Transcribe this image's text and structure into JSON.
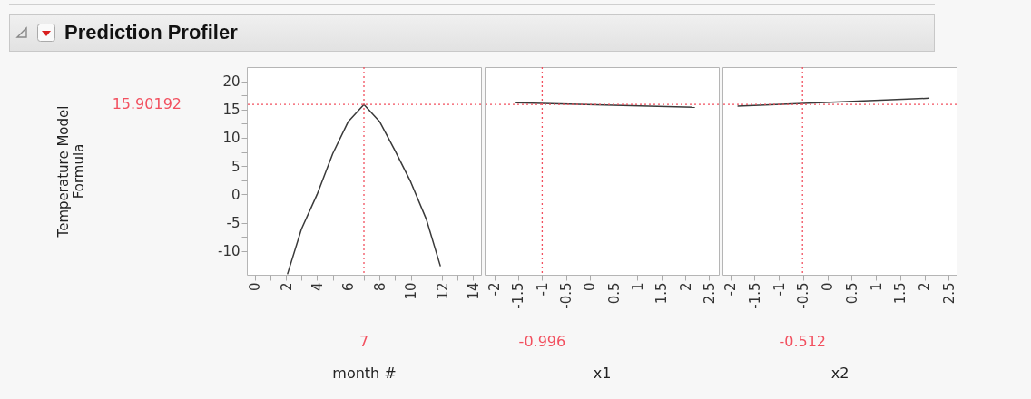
{
  "chart_data": [
    {
      "type": "line",
      "title": "Prediction Profiler",
      "ylabel": "Temperature Model Formula",
      "xlabel": "month #",
      "xlim": [
        -0.5,
        14.5
      ],
      "ylim": [
        -14.2,
        22.5
      ],
      "xticks": [
        0,
        {
          "value": 1,
          "label": null
        },
        2,
        {
          "value": 3,
          "label": null
        },
        4,
        {
          "value": 5,
          "label": null
        },
        6,
        {
          "value": 7,
          "label": null
        },
        8,
        {
          "value": 9,
          "label": null
        },
        10,
        {
          "value": 11,
          "label": null
        },
        12,
        {
          "value": 13,
          "label": null
        },
        14
      ],
      "yticks": [
        -10,
        {
          "value": -7.5,
          "label": null
        },
        -5,
        {
          "value": -2.5,
          "label": null
        },
        0,
        {
          "value": 2.5,
          "label": null
        },
        5,
        {
          "value": 7.5,
          "label": null
        },
        10,
        {
          "value": 12.5,
          "label": null
        },
        15,
        {
          "value": 17.5,
          "label": null
        },
        20
      ],
      "series": [
        {
          "color": "#3a3a3a",
          "x": [
            2.1,
            3,
            4,
            5,
            6,
            7,
            8,
            9,
            10,
            11,
            11.9
          ],
          "values": [
            -14.1,
            -6.1,
            0,
            7.2,
            12.9,
            15.9,
            12.9,
            7.7,
            2.2,
            -4.4,
            -12.7
          ]
        }
      ],
      "ref_lines": [
        {
          "axis": "x",
          "value": 7,
          "label": "7",
          "color": "#f2505f",
          "line_style": "dotted"
        },
        {
          "axis": "y",
          "value": 15.90192,
          "label": "15.90192",
          "color": "#f2505f",
          "line_style": "dotted"
        }
      ],
      "grid": false
    },
    {
      "type": "line",
      "xlabel": "x1",
      "xlim": [
        -2.2,
        2.7
      ],
      "ylim": [
        -14.2,
        22.5
      ],
      "tick_labels": "x",
      "xticks": [
        -2,
        -1.5,
        -1,
        -0.5,
        0,
        0.5,
        1,
        1.5,
        2,
        2.5
      ],
      "series": [
        {
          "color": "#3a3a3a",
          "x": [
            -1.55,
            2.2
          ],
          "values": [
            16.2,
            15.4
          ]
        }
      ],
      "ref_lines": [
        {
          "axis": "x",
          "value": -0.996,
          "label": "-0.996",
          "color": "#f2505f",
          "line_style": "dotted"
        },
        {
          "axis": "y",
          "value": 15.90192,
          "color": "#f2505f",
          "line_style": "dotted"
        }
      ],
      "grid": false
    },
    {
      "type": "line",
      "xlabel": "x2",
      "xlim": [
        -2.16,
        2.66
      ],
      "ylim": [
        -14.2,
        22.5
      ],
      "tick_labels": "x",
      "xticks": [
        -2,
        -1.5,
        -1,
        -0.5,
        0,
        0.5,
        1,
        1.5,
        2,
        2.5
      ],
      "series": [
        {
          "color": "#3a3a3a",
          "x": [
            -1.85,
            2.1
          ],
          "values": [
            15.6,
            17.0
          ]
        }
      ],
      "ref_lines": [
        {
          "axis": "x",
          "value": -0.512,
          "label": "-0.512",
          "color": "#f2505f",
          "line_style": "dotted"
        },
        {
          "axis": "y",
          "value": 15.90192,
          "color": "#f2505f",
          "line_style": "dotted"
        }
      ],
      "grid": false
    }
  ]
}
